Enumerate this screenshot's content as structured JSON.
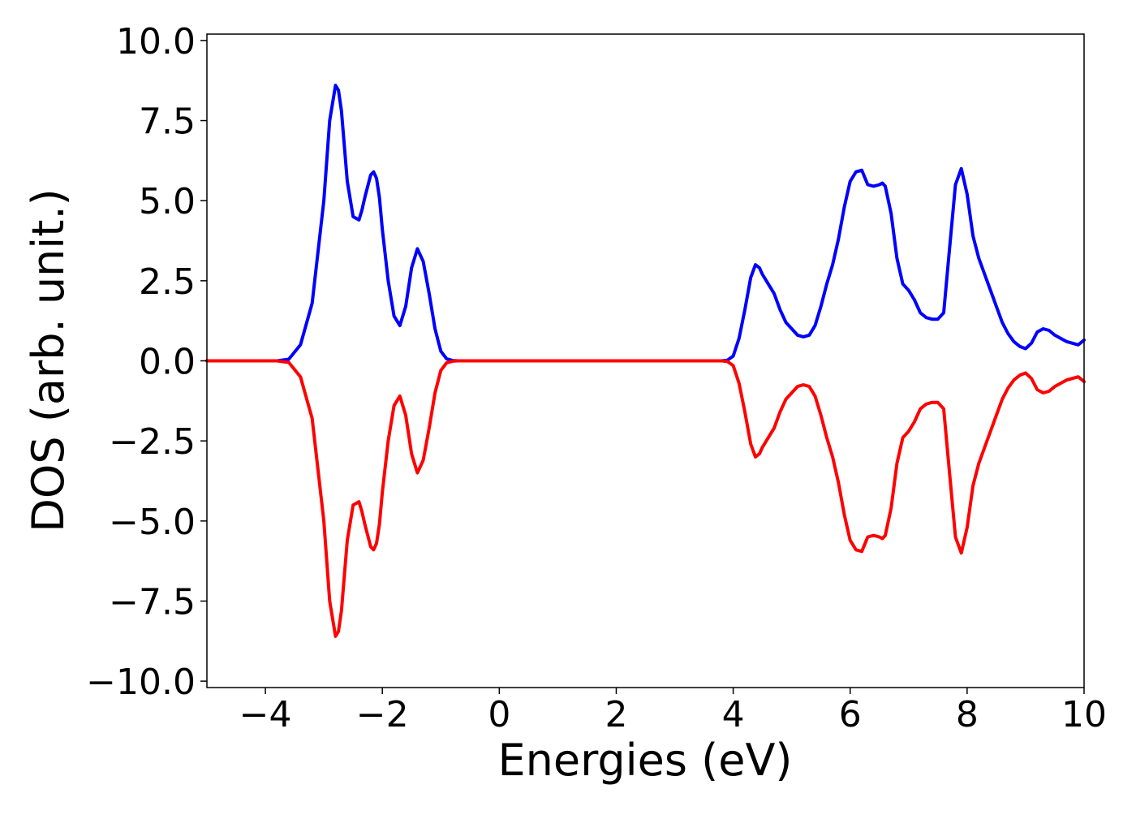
{
  "chart_data": {
    "type": "line",
    "title": "",
    "xlabel": "Energies (eV)",
    "ylabel": "DOS (arb. unit.)",
    "xlim": [
      -5,
      10
    ],
    "ylim": [
      -10.2,
      10.2
    ],
    "grid": false,
    "legend": "none",
    "x_ticks": [
      {
        "value": -4,
        "label": "−4"
      },
      {
        "value": -2,
        "label": "−2"
      },
      {
        "value": 0,
        "label": "0"
      },
      {
        "value": 2,
        "label": "2"
      },
      {
        "value": 4,
        "label": "4"
      },
      {
        "value": 6,
        "label": "6"
      },
      {
        "value": 8,
        "label": "8"
      },
      {
        "value": 10,
        "label": "10"
      }
    ],
    "y_ticks": [
      {
        "value": 10,
        "label": "10.0"
      },
      {
        "value": 7.5,
        "label": "7.5"
      },
      {
        "value": 5,
        "label": "5.0"
      },
      {
        "value": 2.5,
        "label": "2.5"
      },
      {
        "value": 0,
        "label": "0.0"
      },
      {
        "value": -2.5,
        "label": "−2.5"
      },
      {
        "value": -5,
        "label": "−5.0"
      },
      {
        "value": -7.5,
        "label": "−7.5"
      },
      {
        "value": -10,
        "label": "−10.0"
      }
    ],
    "series": [
      {
        "color": "#0000ff",
        "x": [
          -5,
          -4.5,
          -4,
          -3.8,
          -3.6,
          -3.4,
          -3.2,
          -3.0,
          -2.9,
          -2.8,
          -2.75,
          -2.7,
          -2.6,
          -2.5,
          -2.4,
          -2.35,
          -2.3,
          -2.2,
          -2.15,
          -2.1,
          -2.05,
          -2.0,
          -1.9,
          -1.8,
          -1.7,
          -1.6,
          -1.5,
          -1.4,
          -1.3,
          -1.2,
          -1.1,
          -1.0,
          -0.9,
          -0.8,
          -0.7,
          -0.6,
          -0.5,
          0,
          1,
          2,
          3,
          3.6,
          3.8,
          3.9,
          4.0,
          4.1,
          4.2,
          4.3,
          4.38,
          4.45,
          4.5,
          4.6,
          4.7,
          4.8,
          4.9,
          5.0,
          5.1,
          5.2,
          5.3,
          5.4,
          5.5,
          5.6,
          5.7,
          5.8,
          5.9,
          6.0,
          6.1,
          6.2,
          6.3,
          6.4,
          6.5,
          6.55,
          6.6,
          6.7,
          6.8,
          6.9,
          7.0,
          7.1,
          7.2,
          7.3,
          7.4,
          7.5,
          7.6,
          7.7,
          7.8,
          7.9,
          8.0,
          8.1,
          8.2,
          8.3,
          8.4,
          8.5,
          8.6,
          8.7,
          8.8,
          8.9,
          9.0,
          9.1,
          9.2,
          9.3,
          9.4,
          9.5,
          9.6,
          9.7,
          9.8,
          9.9,
          10.0
        ],
        "y": [
          0,
          0,
          0,
          0,
          0.05,
          0.5,
          1.8,
          5.0,
          7.5,
          8.6,
          8.45,
          7.8,
          5.6,
          4.5,
          4.4,
          4.7,
          5.1,
          5.8,
          5.9,
          5.7,
          5.1,
          4.1,
          2.5,
          1.4,
          1.1,
          1.7,
          2.9,
          3.5,
          3.1,
          2.1,
          1.0,
          0.3,
          0.06,
          0.01,
          0,
          0,
          0,
          0,
          0,
          0,
          0,
          0,
          0,
          0.02,
          0.15,
          0.7,
          1.6,
          2.6,
          3.0,
          2.9,
          2.7,
          2.4,
          2.1,
          1.6,
          1.2,
          1.0,
          0.8,
          0.75,
          0.8,
          1.1,
          1.7,
          2.4,
          3.0,
          3.8,
          4.8,
          5.6,
          5.9,
          5.95,
          5.5,
          5.45,
          5.5,
          5.55,
          5.45,
          4.6,
          3.2,
          2.4,
          2.2,
          1.9,
          1.5,
          1.35,
          1.3,
          1.3,
          1.5,
          3.5,
          5.5,
          6.0,
          5.2,
          3.9,
          3.2,
          2.7,
          2.2,
          1.7,
          1.2,
          0.85,
          0.6,
          0.45,
          0.38,
          0.55,
          0.9,
          1.0,
          0.95,
          0.8,
          0.7,
          0.6,
          0.55,
          0.5,
          0.65
        ]
      },
      {
        "color": "#ff0000",
        "x": [
          -5,
          -4.5,
          -4,
          -3.8,
          -3.6,
          -3.4,
          -3.2,
          -3.0,
          -2.9,
          -2.8,
          -2.75,
          -2.7,
          -2.6,
          -2.5,
          -2.4,
          -2.35,
          -2.3,
          -2.2,
          -2.15,
          -2.1,
          -2.05,
          -2.0,
          -1.9,
          -1.8,
          -1.7,
          -1.6,
          -1.5,
          -1.4,
          -1.3,
          -1.2,
          -1.1,
          -1.0,
          -0.9,
          -0.8,
          -0.7,
          -0.6,
          -0.5,
          0,
          1,
          2,
          3,
          3.6,
          3.8,
          3.9,
          4.0,
          4.1,
          4.2,
          4.3,
          4.38,
          4.45,
          4.5,
          4.6,
          4.7,
          4.8,
          4.9,
          5.0,
          5.1,
          5.2,
          5.3,
          5.4,
          5.5,
          5.6,
          5.7,
          5.8,
          5.9,
          6.0,
          6.1,
          6.2,
          6.3,
          6.4,
          6.5,
          6.55,
          6.6,
          6.7,
          6.8,
          6.9,
          7.0,
          7.1,
          7.2,
          7.3,
          7.4,
          7.5,
          7.6,
          7.7,
          7.8,
          7.9,
          8.0,
          8.1,
          8.2,
          8.3,
          8.4,
          8.5,
          8.6,
          8.7,
          8.8,
          8.9,
          9.0,
          9.1,
          9.2,
          9.3,
          9.4,
          9.5,
          9.6,
          9.7,
          9.8,
          9.9,
          10.0
        ],
        "y": [
          0,
          0,
          0,
          0,
          -0.05,
          -0.5,
          -1.8,
          -5.0,
          -7.5,
          -8.6,
          -8.45,
          -7.8,
          -5.6,
          -4.5,
          -4.4,
          -4.7,
          -5.1,
          -5.8,
          -5.9,
          -5.7,
          -5.1,
          -4.1,
          -2.5,
          -1.4,
          -1.1,
          -1.7,
          -2.9,
          -3.5,
          -3.1,
          -2.1,
          -1.0,
          -0.3,
          -0.06,
          -0.01,
          0,
          0,
          0,
          0,
          0,
          0,
          0,
          0,
          0,
          -0.02,
          -0.15,
          -0.7,
          -1.6,
          -2.6,
          -3.0,
          -2.9,
          -2.7,
          -2.4,
          -2.1,
          -1.6,
          -1.2,
          -1.0,
          -0.8,
          -0.75,
          -0.8,
          -1.1,
          -1.7,
          -2.4,
          -3.0,
          -3.8,
          -4.8,
          -5.6,
          -5.9,
          -5.95,
          -5.5,
          -5.45,
          -5.5,
          -5.55,
          -5.45,
          -4.6,
          -3.2,
          -2.4,
          -2.2,
          -1.9,
          -1.5,
          -1.35,
          -1.3,
          -1.3,
          -1.5,
          -3.5,
          -5.5,
          -6.0,
          -5.2,
          -3.9,
          -3.2,
          -2.7,
          -2.2,
          -1.7,
          -1.2,
          -0.85,
          -0.6,
          -0.45,
          -0.38,
          -0.55,
          -0.9,
          -1.0,
          -0.95,
          -0.8,
          -0.7,
          -0.6,
          -0.55,
          -0.5,
          -0.65
        ]
      }
    ]
  }
}
